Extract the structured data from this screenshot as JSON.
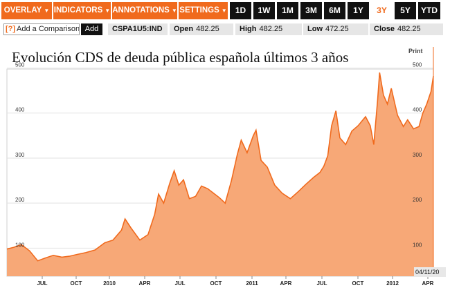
{
  "toolbar": {
    "menus": [
      {
        "label": "OVERLAY"
      },
      {
        "label": "INDICATORS"
      },
      {
        "label": "ANNOTATIONS"
      },
      {
        "label": "SETTINGS"
      }
    ],
    "ranges": [
      "1D",
      "1W",
      "1M",
      "3M",
      "6M",
      "1Y",
      "3Y",
      "5Y",
      "YTD"
    ],
    "active_range": "3Y"
  },
  "infobar": {
    "compare_icon": "[?]",
    "compare_label": "Add a Comparison",
    "add_label": "Add",
    "ticker": "CSPA1U5:IND",
    "open_label": "Open",
    "open_value": "482.25",
    "high_label": "High",
    "high_value": "482.25",
    "low_label": "Low",
    "low_value": "472.25",
    "close_label": "Close",
    "close_value": "482.25"
  },
  "chart_title": "Evolución CDS de deuda pública española últimos 3 años",
  "print_label": "Print",
  "last_date": "04/11/20",
  "colors": {
    "accent": "#f06a1d",
    "area": "#f7a877",
    "line": "#f06a1d"
  },
  "chart_data": {
    "type": "area",
    "title": "Evolución CDS de deuda pública española últimos 3 años",
    "xlabel": "",
    "ylabel": "",
    "ylim": [
      50,
      510
    ],
    "y_ticks": [
      100,
      200,
      300,
      400,
      500
    ],
    "x_ticks": [
      "JUL",
      "OCT",
      "2010",
      "APR",
      "JUL",
      "OCT",
      "2011",
      "APR",
      "JUL",
      "OCT",
      "2012",
      "APR"
    ],
    "grid": true,
    "series": [
      {
        "points": [
          {
            "x": "2009-04-13",
            "y": 98
          },
          {
            "x": "2009-05-01",
            "y": 102
          },
          {
            "x": "2009-05-20",
            "y": 108
          },
          {
            "x": "2009-06-10",
            "y": 94
          },
          {
            "x": "2009-07-01",
            "y": 72
          },
          {
            "x": "2009-07-20",
            "y": 78
          },
          {
            "x": "2009-08-10",
            "y": 84
          },
          {
            "x": "2009-09-01",
            "y": 80
          },
          {
            "x": "2009-09-20",
            "y": 82
          },
          {
            "x": "2009-10-10",
            "y": 86
          },
          {
            "x": "2009-11-01",
            "y": 90
          },
          {
            "x": "2009-11-25",
            "y": 96
          },
          {
            "x": "2009-12-20",
            "y": 112
          },
          {
            "x": "2010-01-10",
            "y": 118
          },
          {
            "x": "2010-02-01",
            "y": 140
          },
          {
            "x": "2010-02-10",
            "y": 165
          },
          {
            "x": "2010-02-25",
            "y": 145
          },
          {
            "x": "2010-03-20",
            "y": 118
          },
          {
            "x": "2010-04-10",
            "y": 130
          },
          {
            "x": "2010-04-27",
            "y": 175
          },
          {
            "x": "2010-05-07",
            "y": 220
          },
          {
            "x": "2010-05-20",
            "y": 200
          },
          {
            "x": "2010-06-05",
            "y": 245
          },
          {
            "x": "2010-06-16",
            "y": 272
          },
          {
            "x": "2010-06-28",
            "y": 240
          },
          {
            "x": "2010-07-10",
            "y": 252
          },
          {
            "x": "2010-07-25",
            "y": 210
          },
          {
            "x": "2010-08-10",
            "y": 215
          },
          {
            "x": "2010-08-25",
            "y": 238
          },
          {
            "x": "2010-09-10",
            "y": 232
          },
          {
            "x": "2010-09-25",
            "y": 222
          },
          {
            "x": "2010-10-10",
            "y": 212
          },
          {
            "x": "2010-10-25",
            "y": 200
          },
          {
            "x": "2010-11-10",
            "y": 250
          },
          {
            "x": "2010-11-25",
            "y": 308
          },
          {
            "x": "2010-12-05",
            "y": 340
          },
          {
            "x": "2010-12-20",
            "y": 312
          },
          {
            "x": "2011-01-05",
            "y": 350
          },
          {
            "x": "2011-01-12",
            "y": 362
          },
          {
            "x": "2011-01-25",
            "y": 295
          },
          {
            "x": "2011-02-10",
            "y": 280
          },
          {
            "x": "2011-03-01",
            "y": 240
          },
          {
            "x": "2011-03-20",
            "y": 222
          },
          {
            "x": "2011-04-10",
            "y": 210
          },
          {
            "x": "2011-05-01",
            "y": 226
          },
          {
            "x": "2011-05-20",
            "y": 242
          },
          {
            "x": "2011-06-10",
            "y": 258
          },
          {
            "x": "2011-06-25",
            "y": 268
          },
          {
            "x": "2011-07-05",
            "y": 282
          },
          {
            "x": "2011-07-15",
            "y": 305
          },
          {
            "x": "2011-07-25",
            "y": 372
          },
          {
            "x": "2011-08-05",
            "y": 405
          },
          {
            "x": "2011-08-15",
            "y": 345
          },
          {
            "x": "2011-08-30",
            "y": 330
          },
          {
            "x": "2011-09-15",
            "y": 360
          },
          {
            "x": "2011-10-01",
            "y": 372
          },
          {
            "x": "2011-10-20",
            "y": 392
          },
          {
            "x": "2011-11-01",
            "y": 372
          },
          {
            "x": "2011-11-10",
            "y": 330
          },
          {
            "x": "2011-11-20",
            "y": 430
          },
          {
            "x": "2011-11-25",
            "y": 490
          },
          {
            "x": "2011-12-05",
            "y": 440
          },
          {
            "x": "2011-12-15",
            "y": 420
          },
          {
            "x": "2011-12-25",
            "y": 455
          },
          {
            "x": "2012-01-10",
            "y": 395
          },
          {
            "x": "2012-01-25",
            "y": 370
          },
          {
            "x": "2012-02-05",
            "y": 385
          },
          {
            "x": "2012-02-20",
            "y": 365
          },
          {
            "x": "2012-03-05",
            "y": 370
          },
          {
            "x": "2012-03-15",
            "y": 400
          },
          {
            "x": "2012-03-25",
            "y": 420
          },
          {
            "x": "2012-04-05",
            "y": 448
          },
          {
            "x": "2012-04-11",
            "y": 482
          }
        ]
      }
    ]
  }
}
